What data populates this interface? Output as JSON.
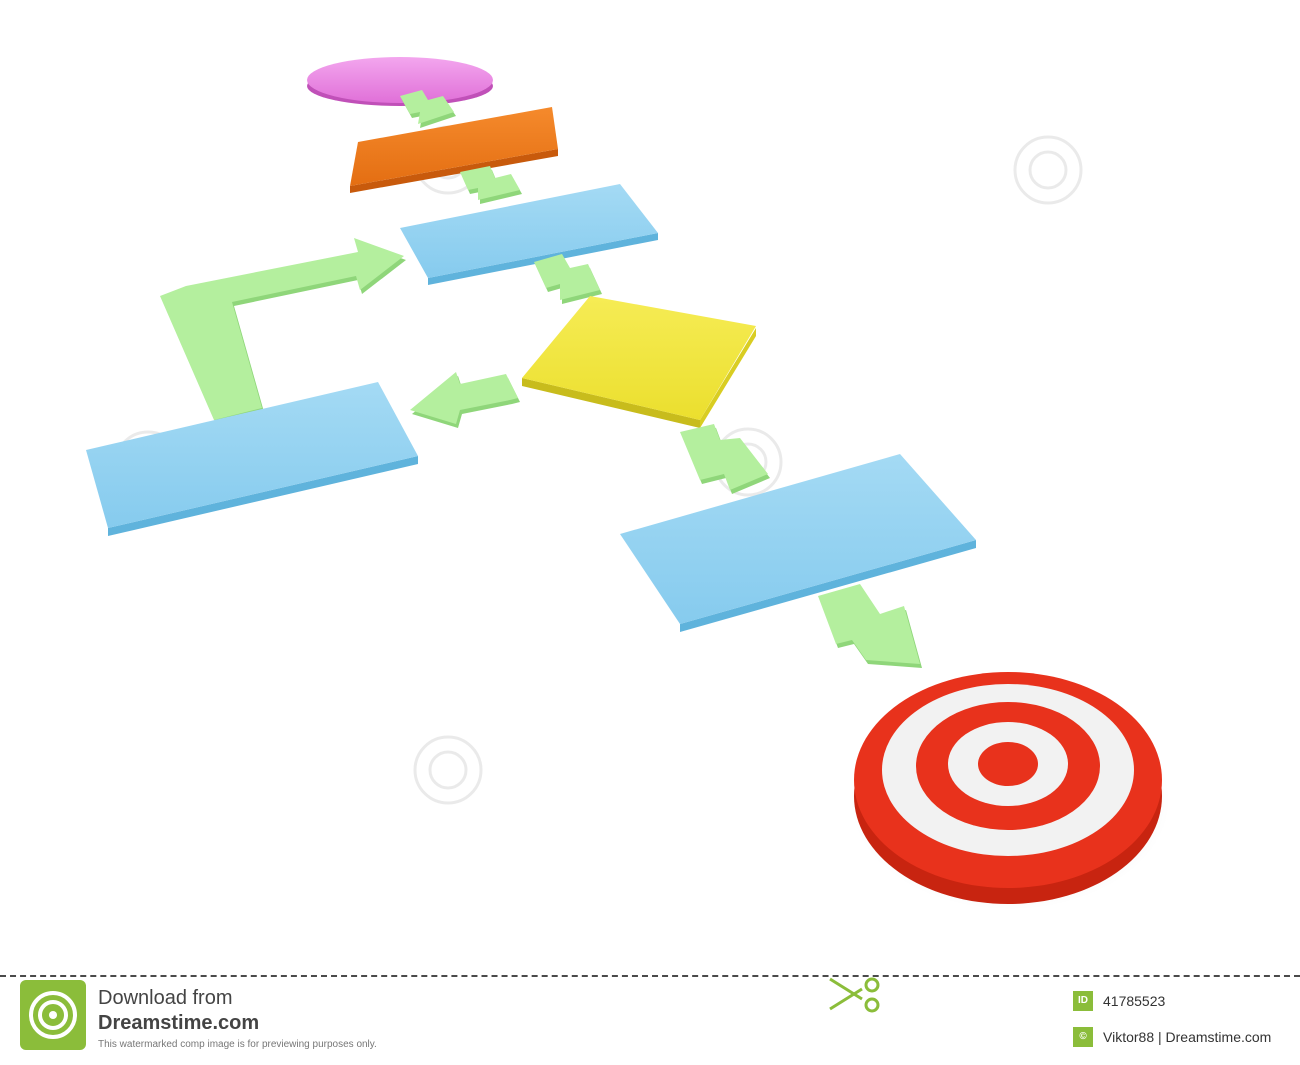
{
  "footer": {
    "download_from": "Download from",
    "site_name": "Dreamstime.com",
    "preview_note": "This watermarked comp image is for previewing purposes only.",
    "id_badge": "ID",
    "image_id": "41785523",
    "copyright_badge": "©",
    "credit": "Viktor88 | Dreamstime.com"
  },
  "colors": {
    "start_ellipse": "#e77fe0",
    "process_orange": "#ef7a1c",
    "process_blue": "#8fd0f0",
    "decision_yellow": "#f0e53c",
    "arrow_green": "#a9ea92",
    "target_red": "#e8321c",
    "brand_green": "#8bbd3a"
  },
  "icons": [
    "dreamstime-spiral-logo-icon",
    "scissors-icon",
    "id-badge-icon",
    "copyright-icon",
    "target-icon"
  ]
}
